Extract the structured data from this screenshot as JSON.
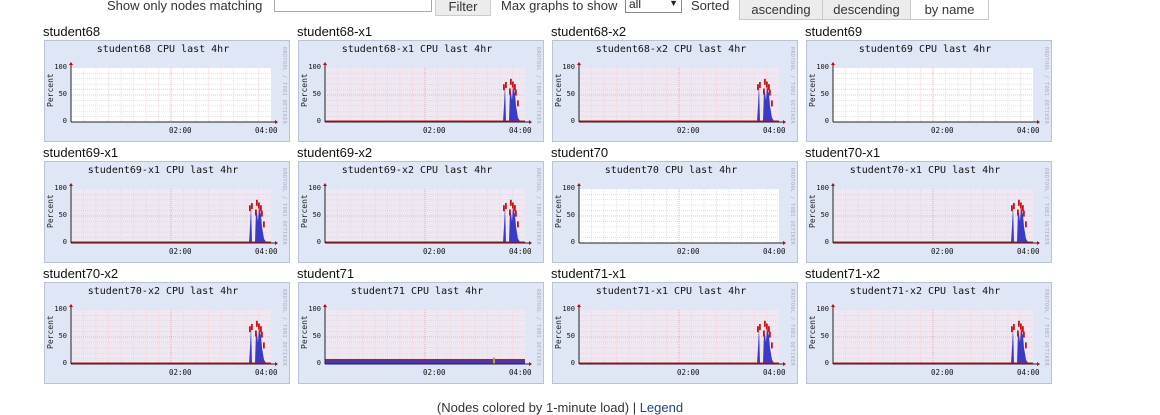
{
  "toolbar": {
    "filter_label": "Show only nodes matching",
    "filter_value": "",
    "filter_button": "Filter",
    "max_graphs_label": "Max graphs to show",
    "max_graphs_value": "all",
    "sorted_label": "Sorted",
    "sort_options": [
      "ascending",
      "descending",
      "by name"
    ],
    "sort_selected": "by name"
  },
  "graph_common": {
    "ylabel": "Percent",
    "yticks": [
      "100",
      "50",
      "0"
    ],
    "xticks": [
      "02:00",
      "04:00"
    ],
    "watermark": "RRDTOOL / TOBI OETIKER",
    "title_suffix": " CPU last 4hr"
  },
  "colors": {
    "user": "#3a3ac8",
    "system": "#d11010",
    "panel_bg": "#dfe6f5",
    "grid": "#e6a0a0"
  },
  "nodes": [
    {
      "name": "student68",
      "graph_title": "student68 CPU last 4hr",
      "profile": "empty"
    },
    {
      "name": "student68-x1",
      "graph_title": "student68-x1 CPU last 4hr",
      "profile": "spike"
    },
    {
      "name": "student68-x2",
      "graph_title": "student68-x2 CPU last 4hr",
      "profile": "spike"
    },
    {
      "name": "student69",
      "graph_title": "student69 CPU last 4hr",
      "profile": "empty"
    },
    {
      "name": "student69-x1",
      "graph_title": "student69-x1 CPU last 4hr",
      "profile": "spike"
    },
    {
      "name": "student69-x2",
      "graph_title": "student69-x2 CPU last 4hr",
      "profile": "spike"
    },
    {
      "name": "student70",
      "graph_title": "student70 CPU last 4hr",
      "profile": "empty"
    },
    {
      "name": "student70-x1",
      "graph_title": "student70-x1 CPU last 4hr",
      "profile": "spike"
    },
    {
      "name": "student70-x2",
      "graph_title": "student70-x2 CPU last 4hr",
      "profile": "spike"
    },
    {
      "name": "student71",
      "graph_title": "student71 CPU last 4hr",
      "profile": "steady"
    },
    {
      "name": "student71-x1",
      "graph_title": "student71-x1 CPU last 4hr",
      "profile": "spike"
    },
    {
      "name": "student71-x2",
      "graph_title": "student71-x2 CPU last 4hr",
      "profile": "spike"
    }
  ],
  "footer": {
    "text": "(Nodes colored by 1-minute load) | ",
    "link": "Legend"
  }
}
